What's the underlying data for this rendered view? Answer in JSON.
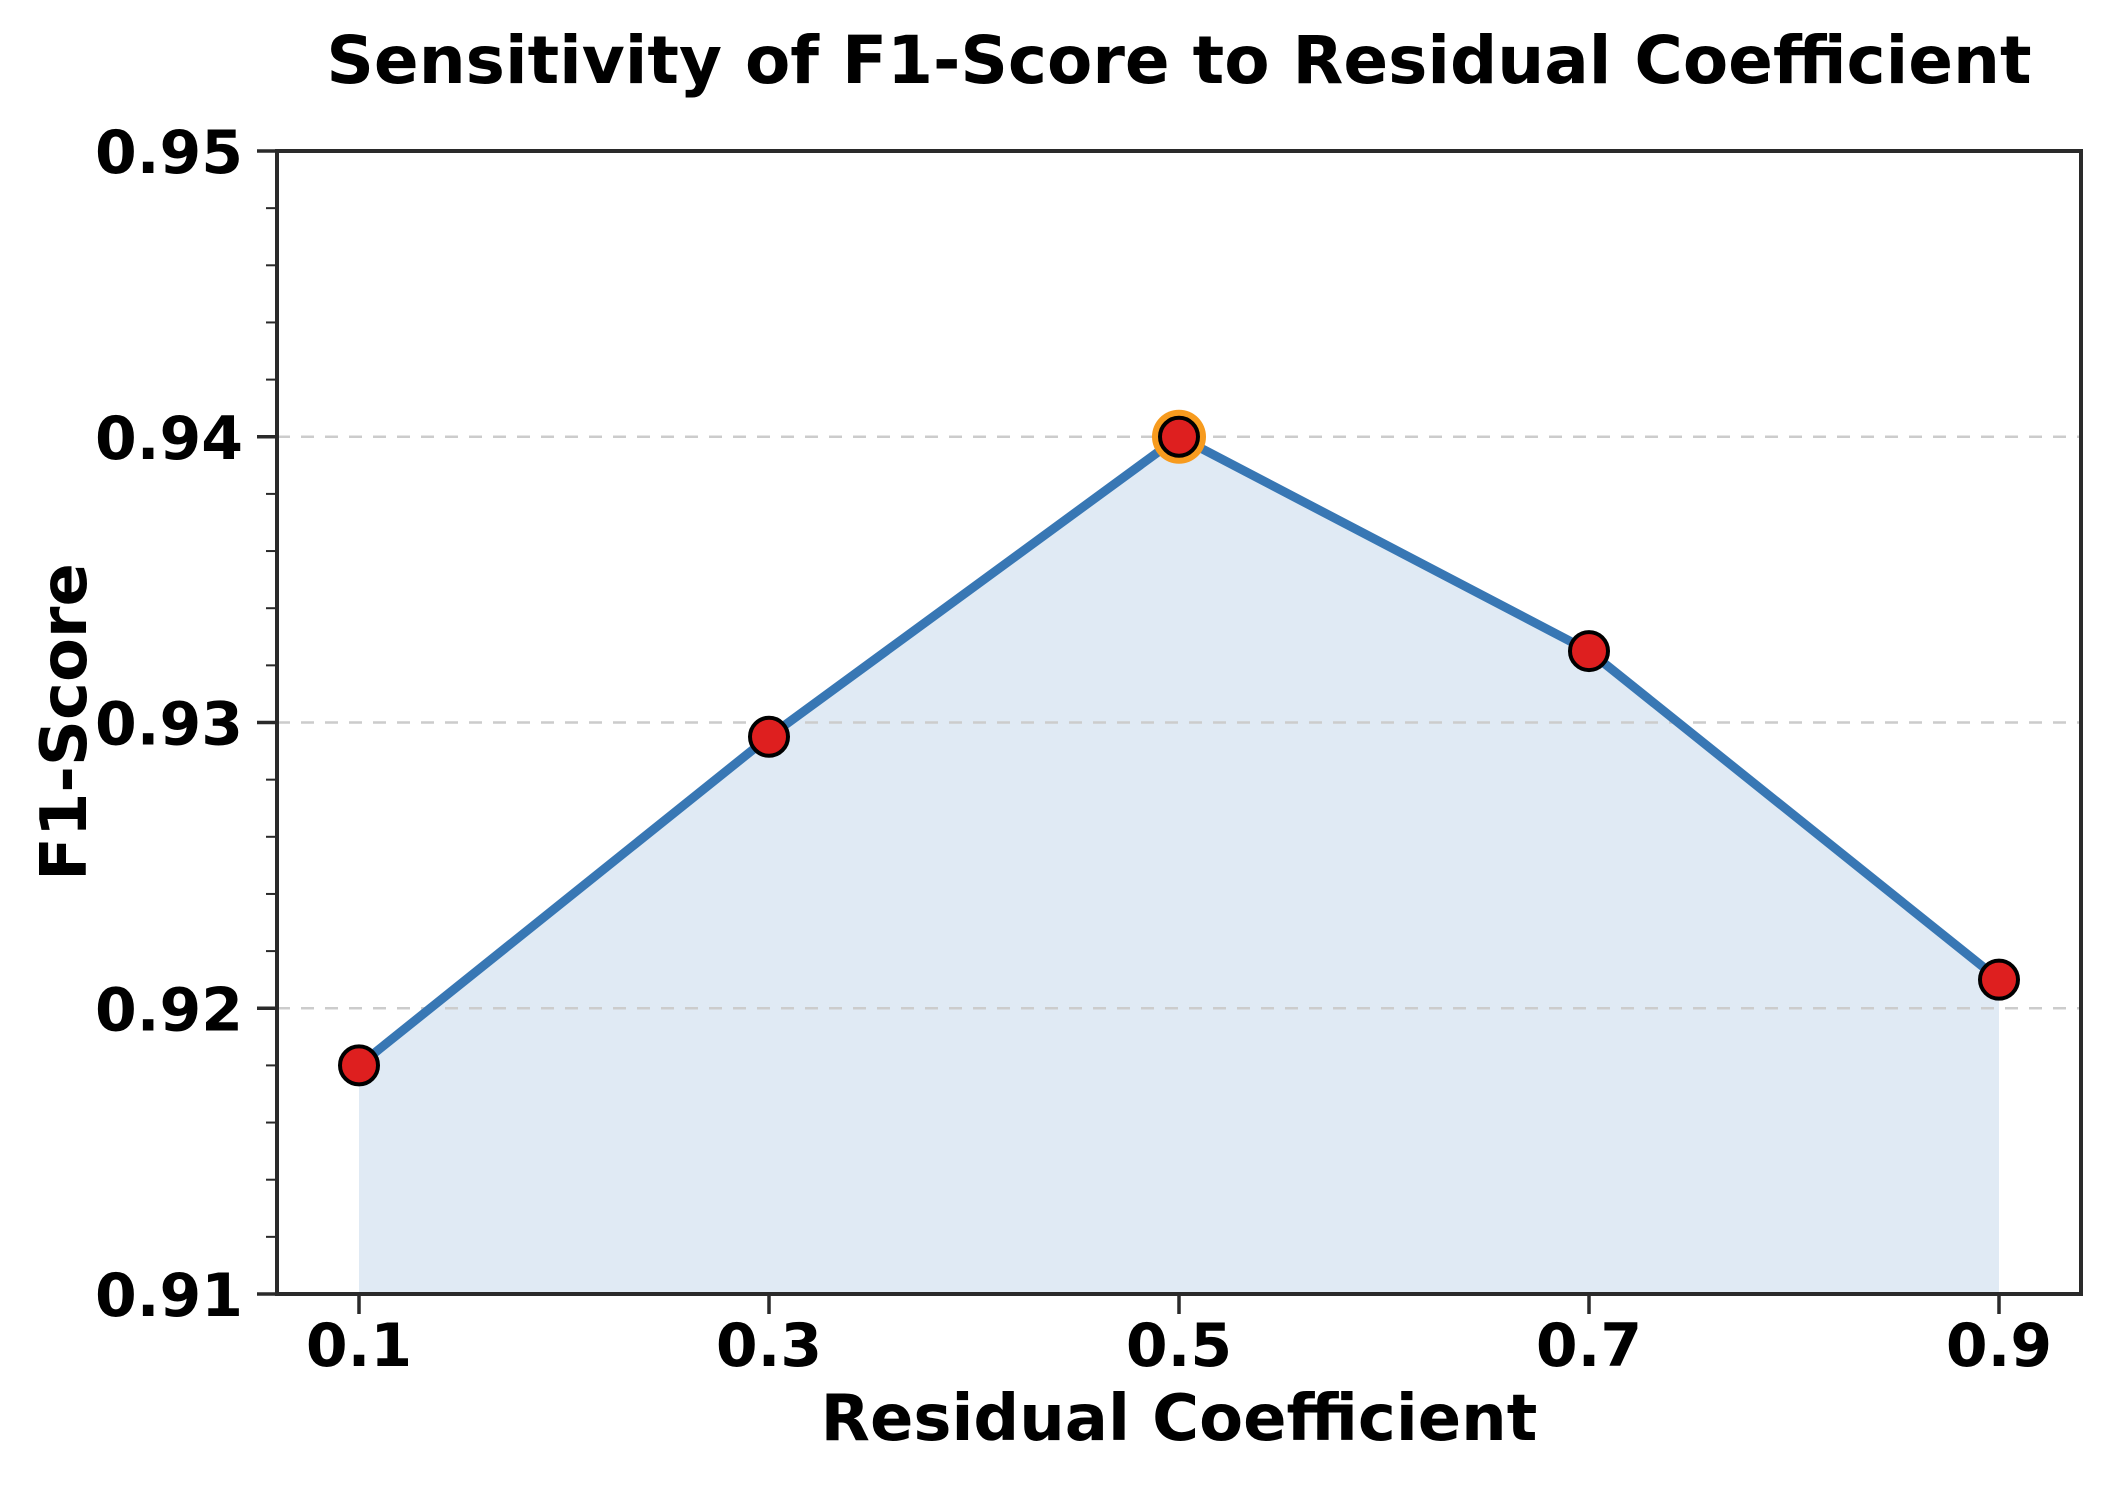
{
  "page": {
    "background": "#ffffff"
  },
  "chart_data": {
    "type": "line",
    "title": "Sensitivity of F1-Score to Residual Coefficient",
    "xlabel": "Residual Coefficient",
    "ylabel": "F1-Score",
    "x": [
      0.1,
      0.3,
      0.5,
      0.7,
      0.9
    ],
    "series": [
      {
        "name": "F1-Score",
        "values": [
          0.918,
          0.9295,
          0.94,
          0.9325,
          0.921
        ]
      }
    ],
    "highlight_point": {
      "x": 0.5,
      "y": 0.94,
      "style": "orange-ring"
    },
    "xlim": [
      0.06,
      0.94
    ],
    "ylim": [
      0.91,
      0.95
    ],
    "xticks": [
      0.1,
      0.3,
      0.5,
      0.7,
      0.9
    ],
    "yticks": [
      0.91,
      0.92,
      0.93,
      0.94,
      0.95
    ],
    "xtick_labels": [
      "0.1",
      "0.3",
      "0.5",
      "0.7",
      "0.9"
    ],
    "ytick_labels": [
      "0.91",
      "0.92",
      "0.93",
      "0.94",
      "0.95"
    ],
    "y_minor_tick_step": 0.002,
    "grid": "horizontal-dashed",
    "area_fill": true,
    "legend": null,
    "colors": {
      "line": "#3877b4",
      "area_fill": "#e0eaf4",
      "marker_fill": "#de1f1f",
      "marker_edge": "#000000",
      "highlight_ring": "#f79b1e",
      "gridline": "#cccccc",
      "spine": "#2a2a2a",
      "text": "#000000",
      "background": "#ffffff"
    }
  }
}
